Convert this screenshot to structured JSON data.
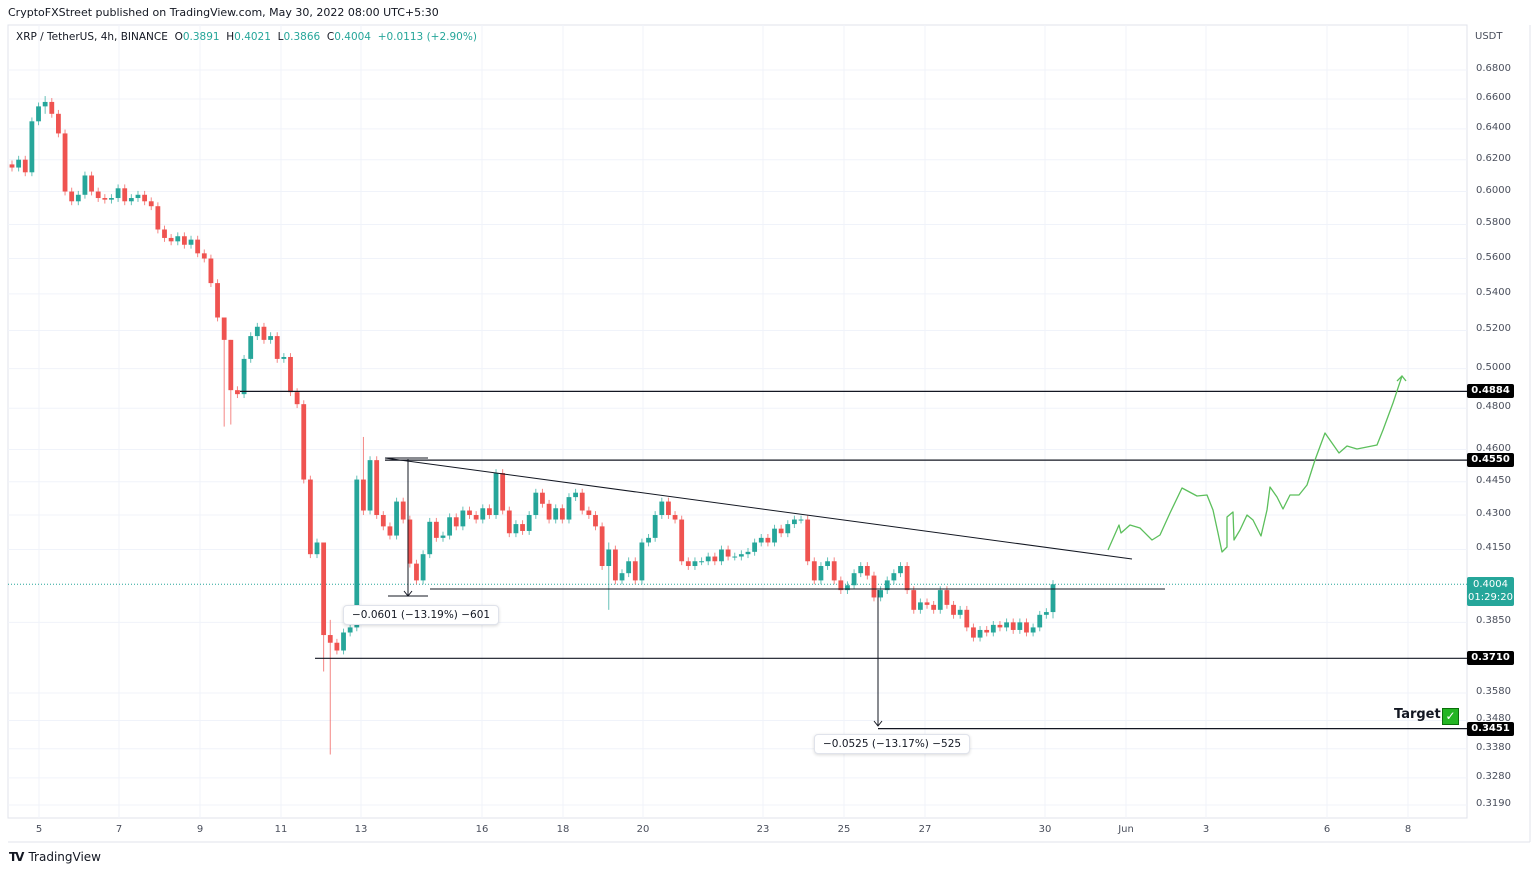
{
  "header": {
    "publisher": "CryptoFXStreet published on TradingView.com, May 30, 2022 08:00 UTC+5:30",
    "symbol": "XRP / TetherUS, 4h, BINANCE",
    "o_label": "O",
    "o": "0.3891",
    "h_label": "H",
    "h": "0.4021",
    "l_label": "L",
    "l": "0.3866",
    "c_label": "C",
    "c": "0.4004",
    "change": "+0.0113 (+2.90%)"
  },
  "currency": "USDT",
  "brand": "TradingView",
  "colors": {
    "up": "#26a69a",
    "down": "#ef5350",
    "projection": "#5cbf5c",
    "level": "#131722"
  },
  "chart_data": {
    "type": "candlestick",
    "title": "XRP / TetherUS, 4h, BINANCE",
    "scale": "log",
    "ylim": [
      0.315,
      0.69
    ],
    "y_ticks": [
      "0.6800",
      "0.6600",
      "0.6400",
      "0.6200",
      "0.6000",
      "0.5800",
      "0.5600",
      "0.5400",
      "0.5200",
      "0.5000",
      "0.4800",
      "0.4600",
      "0.4450",
      "0.4300",
      "0.4150",
      "0.3850",
      "0.3580",
      "0.3480",
      "0.3380",
      "0.3280",
      "0.3190"
    ],
    "x_ticks": [
      "5",
      "7",
      "9",
      "11",
      "13",
      "16",
      "18",
      "20",
      "23",
      "25",
      "27",
      "30",
      "Jun",
      "3",
      "6",
      "8"
    ],
    "first_open": 0.617,
    "close": [
      0.615,
      0.62,
      0.612,
      0.645,
      0.655,
      0.658,
      0.65,
      0.637,
      0.6,
      0.594,
      0.598,
      0.61,
      0.6,
      0.596,
      0.595,
      0.596,
      0.602,
      0.594,
      0.596,
      0.598,
      0.594,
      0.591,
      0.577,
      0.572,
      0.57,
      0.573,
      0.568,
      0.571,
      0.563,
      0.56,
      0.546,
      0.527,
      0.515,
      0.489,
      0.487,
      0.505,
      0.517,
      0.522,
      0.515,
      0.517,
      0.505,
      0.506,
      0.488,
      0.482,
      0.446,
      0.413,
      0.418,
      0.38,
      0.377,
      0.374,
      0.381,
      0.383,
      0.446,
      0.432,
      0.455,
      0.43,
      0.425,
      0.421,
      0.436,
      0.428,
      0.409,
      0.402,
      0.413,
      0.427,
      0.42,
      0.421,
      0.429,
      0.425,
      0.432,
      0.43,
      0.428,
      0.433,
      0.43,
      0.449,
      0.432,
      0.422,
      0.426,
      0.423,
      0.43,
      0.44,
      0.435,
      0.428,
      0.433,
      0.428,
      0.438,
      0.44,
      0.432,
      0.43,
      0.425,
      0.408,
      0.415,
      0.402,
      0.405,
      0.41,
      0.402,
      0.418,
      0.42,
      0.43,
      0.436,
      0.43,
      0.428,
      0.41,
      0.408,
      0.41,
      0.41,
      0.412,
      0.41,
      0.415,
      0.412,
      0.412,
      0.413,
      0.414,
      0.418,
      0.42,
      0.418,
      0.424,
      0.422,
      0.426,
      0.428,
      0.428,
      0.41,
      0.402,
      0.408,
      0.41,
      0.402,
      0.398,
      0.4,
      0.405,
      0.408,
      0.404,
      0.395,
      0.398,
      0.402,
      0.405,
      0.408,
      0.398,
      0.39,
      0.393,
      0.392,
      0.39,
      0.398,
      0.392,
      0.388,
      0.39,
      0.383,
      0.379,
      0.382,
      0.381,
      0.384,
      0.383,
      0.385,
      0.382,
      0.385,
      0.381,
      0.383,
      0.388,
      0.3891,
      0.4004
    ],
    "notable_wicks": {
      "5": [
        0.662,
        0.65
      ],
      "32": [
        0.527,
        0.471
      ],
      "33": [
        0.515,
        0.472
      ],
      "47": [
        0.418,
        0.366
      ],
      "48": [
        0.386,
        0.336
      ],
      "53": [
        0.466,
        0.43
      ],
      "90": [
        0.418,
        0.39
      ],
      "157": [
        0.4021,
        0.3866
      ]
    },
    "levels": [
      {
        "value": 0.4884,
        "label": "0.4884"
      },
      {
        "value": 0.455,
        "label": "0.4550"
      },
      {
        "value": 0.371,
        "label": "0.3710"
      },
      {
        "value": 0.3451,
        "label": "0.3451"
      }
    ],
    "current_price": {
      "label": "0.4004",
      "countdown": "01:29:20"
    },
    "measurements": [
      {
        "label": "−0.0601 (−13.19%) −601",
        "from": 0.455,
        "to": 0.3949
      },
      {
        "label": "−0.0525 (−13.17%) −525",
        "from": 0.398,
        "to": 0.3455
      }
    ],
    "annotations": {
      "target_label": "Target",
      "target_check": "✓"
    }
  }
}
